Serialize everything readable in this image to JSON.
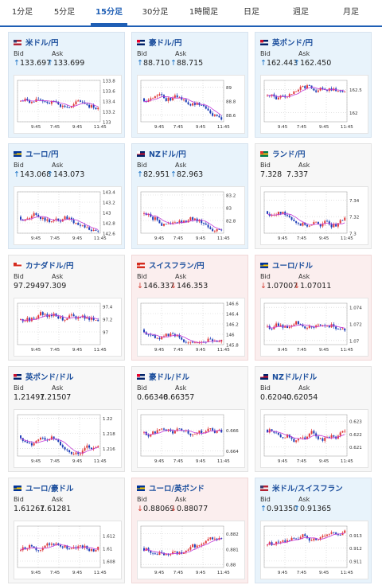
{
  "tabs": [
    {
      "label": "1分足"
    },
    {
      "label": "5分足"
    },
    {
      "label": "15分足"
    },
    {
      "label": "30分足"
    },
    {
      "label": "1時間足"
    },
    {
      "label": "日足"
    },
    {
      "label": "週足"
    },
    {
      "label": "月足"
    }
  ],
  "active_tab": "15分足",
  "bid_label": "Bid",
  "ask_label": "Ask",
  "colors": {
    "accent": "#1f5fb5",
    "up_bg": "#e8f3fb",
    "down_bg": "#fbeeee",
    "up_arrow": "#1a72c6",
    "down_arrow": "#d33a2f",
    "candle_up": "#e03a3a",
    "candle_down": "#1f3fb8",
    "ma": "#c43ad8"
  },
  "pairs": [
    {
      "name": "米ドル/円",
      "flag": "us-flag",
      "trend": "up",
      "arrow": "↑",
      "bid": "133.697",
      "ask": "133.699",
      "x_ticks": [
        "9:45",
        "7:45",
        "9:45",
        "11:45"
      ],
      "y_ticks": [
        "133.8",
        "133.6",
        "133.4",
        "133.2",
        "133"
      ],
      "ylim": [
        133,
        133.8
      ]
    },
    {
      "name": "豪ドル/円",
      "flag": "au-flag",
      "trend": "up",
      "arrow": "↑",
      "bid": "88.710",
      "ask": "88.715",
      "x_ticks": [
        "9:45",
        "7:45",
        "9:45",
        "11:45"
      ],
      "y_ticks": [
        "89",
        "88.8",
        "88.6"
      ],
      "ylim": [
        88.5,
        89.1
      ]
    },
    {
      "name": "英ポンド/円",
      "flag": "gb-flag",
      "trend": "up",
      "arrow": "↑",
      "bid": "162.443",
      "ask": "162.450",
      "x_ticks": [
        "9:45",
        "7:45",
        "9:45",
        "11:45"
      ],
      "y_ticks": [
        "162.5",
        "162"
      ],
      "ylim": [
        161.8,
        162.7
      ]
    },
    {
      "name": "ユーロ/円",
      "flag": "eu-flag",
      "trend": "up",
      "arrow": "↑",
      "bid": "143.068",
      "ask": "143.073",
      "x_ticks": [
        "9:45",
        "7:45",
        "9:45",
        "11:45"
      ],
      "y_ticks": [
        "143.4",
        "143.2",
        "143",
        "142.8",
        "142.6"
      ],
      "ylim": [
        142.6,
        143.4
      ]
    },
    {
      "name": "NZドル/円",
      "flag": "nz-flag",
      "trend": "up",
      "arrow": "↑",
      "bid": "82.951",
      "ask": "82.963",
      "x_ticks": [
        "9:45",
        "7:45",
        "9:45",
        "11:45"
      ],
      "y_ticks": [
        "83.2",
        "83",
        "82.8"
      ],
      "ylim": [
        82.6,
        83.25
      ]
    },
    {
      "name": "ランド/円",
      "flag": "za-flag",
      "trend": "flat",
      "arrow": "",
      "bid": "7.328",
      "ask": "7.337",
      "x_ticks": [
        "9:45",
        "7:45",
        "9:45",
        "11:45"
      ],
      "y_ticks": [
        "7.34",
        "7.32",
        "7.3"
      ],
      "ylim": [
        7.3,
        7.35
      ]
    },
    {
      "name": "カナダドル/円",
      "flag": "ca-flag",
      "trend": "flat",
      "arrow": "",
      "bid": "97.294",
      "ask": "97.309",
      "x_ticks": [
        "9:45",
        "7:45",
        "9:45",
        "11:45"
      ],
      "y_ticks": [
        "97.4",
        "97.2",
        "97"
      ],
      "ylim": [
        96.8,
        97.45
      ]
    },
    {
      "name": "スイスフラン/円",
      "flag": "ch-flag",
      "trend": "down",
      "arrow": "↓",
      "bid": "146.337",
      "ask": "146.353",
      "x_ticks": [
        "9:45",
        "7:45",
        "9:45",
        "11:45"
      ],
      "y_ticks": [
        "146.6",
        "146.4",
        "146.2",
        "146",
        "145.8"
      ],
      "ylim": [
        145.8,
        146.6
      ]
    },
    {
      "name": "ユーロ/ドル",
      "flag": "eu-us-flag",
      "trend": "down",
      "arrow": "↓",
      "bid": "1.07007",
      "ask": "1.07011",
      "x_ticks": [
        "9:45",
        "7:45",
        "9:45",
        "11:45"
      ],
      "y_ticks": [
        "1.074",
        "1.072",
        "1.07"
      ],
      "ylim": [
        1.0695,
        1.0745
      ]
    },
    {
      "name": "英ポンド/ドル",
      "flag": "gb-us-flag",
      "trend": "flat",
      "arrow": "",
      "bid": "1.21497",
      "ask": "1.21507",
      "x_ticks": [
        "9:45",
        "7:45",
        "9:45",
        "11:45"
      ],
      "y_ticks": [
        "1.22",
        "1.218",
        "1.216"
      ],
      "ylim": [
        1.215,
        1.2205
      ]
    },
    {
      "name": "豪ドル/ドル",
      "flag": "au-us-flag",
      "trend": "flat",
      "arrow": "",
      "bid": "0.66348",
      "ask": "0.66357",
      "x_ticks": [
        "9:45",
        "7:45",
        "9:45",
        "11:45"
      ],
      "y_ticks": [
        "0.666",
        "0.664"
      ],
      "ylim": [
        0.6635,
        0.6675
      ]
    },
    {
      "name": "NZドル/ドル",
      "flag": "nz-us-flag",
      "trend": "flat",
      "arrow": "",
      "bid": "0.62040",
      "ask": "0.62054",
      "x_ticks": [
        "9:45",
        "7:45",
        "9:45",
        "11:45"
      ],
      "y_ticks": [
        "0.623",
        "0.622",
        "0.621"
      ],
      "ylim": [
        0.6203,
        0.6235
      ]
    },
    {
      "name": "ユーロ/豪ドル",
      "flag": "eu-au-flag",
      "trend": "flat",
      "arrow": "",
      "bid": "1.61267",
      "ask": "1.61281",
      "x_ticks": [
        "9:45",
        "7:45",
        "9:45",
        "11:45"
      ],
      "y_ticks": [
        "1.612",
        "1.61",
        "1.608"
      ],
      "ylim": [
        1.607,
        1.6135
      ]
    },
    {
      "name": "ユーロ/英ポンド",
      "flag": "eu-gb-flag",
      "trend": "down",
      "arrow": "↓",
      "bid": "0.88069",
      "ask": "0.88077",
      "x_ticks": [
        "9:45",
        "7:45",
        "9:45",
        "11:45"
      ],
      "y_ticks": [
        "0.882",
        "0.881",
        "0.88"
      ],
      "ylim": [
        0.8798,
        0.8825
      ]
    },
    {
      "name": "米ドル/スイスフラン",
      "flag": "us-ch-flag",
      "trend": "up",
      "arrow": "↑",
      "bid": "0.91350",
      "ask": "0.91365",
      "x_ticks": [
        "9:45",
        "7:45",
        "9:45",
        "11:45"
      ],
      "y_ticks": [
        "0.913",
        "0.912",
        "0.911"
      ],
      "ylim": [
        0.9105,
        0.9137
      ]
    }
  ]
}
